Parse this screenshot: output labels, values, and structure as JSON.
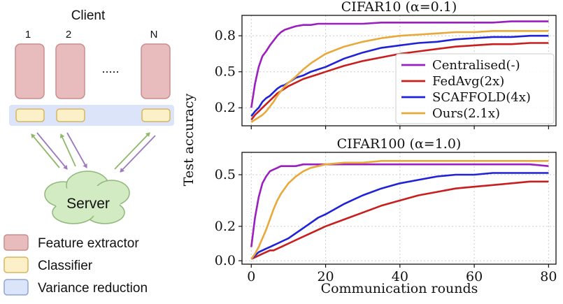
{
  "diagram": {
    "client_title": "Client",
    "client_labels": [
      "1",
      "2",
      "N"
    ],
    "ellipsis": ".....",
    "server_label": "Server",
    "legend": [
      {
        "label": "Feature extractor",
        "fill": "#e8bcbc",
        "stroke": "#c98d8d"
      },
      {
        "label": "Classifier",
        "fill": "#fbf0c8",
        "stroke": "#d9b65e"
      },
      {
        "label": "Variance reduction",
        "fill": "#dbe4f8",
        "stroke": "#8fa6d4"
      }
    ],
    "colors": {
      "extractor_fill": "#e8bcbc",
      "extractor_stroke": "#c98d8d",
      "classifier_fill": "#fbf0c8",
      "classifier_stroke": "#d9b65e",
      "variance_fill": "#dbe4f8",
      "server_fill": "#d3ebc3",
      "server_stroke": "#8fb87a",
      "arrow_up": "#8fb86a",
      "arrow_down": "#9b7bbd"
    }
  },
  "chart_data": [
    {
      "type": "line",
      "title": "CIFAR10 (α=0.1)",
      "xlabel": "",
      "ylabel": "Test accuracy",
      "xlim": [
        -2.5,
        82
      ],
      "ylim": [
        0.05,
        0.97
      ],
      "xticks": [
        0,
        20,
        40,
        60,
        80
      ],
      "xtick_labels": [
        "",
        "",
        "",
        "",
        ""
      ],
      "yticks": [
        0.2,
        0.5,
        0.8
      ],
      "ytick_labels": [
        "0.2",
        "0.5",
        "0.8"
      ],
      "grid": true,
      "legend_position": "lower-right",
      "x": [
        0,
        1,
        2,
        3,
        4,
        5,
        6,
        7,
        8,
        9,
        10,
        12,
        14,
        16,
        18,
        20,
        25,
        30,
        35,
        40,
        45,
        50,
        55,
        60,
        65,
        70,
        75,
        80
      ],
      "series": [
        {
          "name": "Centralised(-)",
          "color": "#9b1fc0",
          "values": [
            0.2,
            0.4,
            0.54,
            0.63,
            0.67,
            0.72,
            0.76,
            0.8,
            0.83,
            0.85,
            0.86,
            0.88,
            0.89,
            0.89,
            0.9,
            0.9,
            0.9,
            0.9,
            0.91,
            0.91,
            0.91,
            0.91,
            0.91,
            0.91,
            0.91,
            0.92,
            0.92,
            0.92
          ]
        },
        {
          "name": "FedAvg(2x)",
          "color": "#c81e1e",
          "values": [
            0.1,
            0.14,
            0.17,
            0.2,
            0.23,
            0.26,
            0.29,
            0.32,
            0.34,
            0.36,
            0.38,
            0.41,
            0.44,
            0.46,
            0.48,
            0.5,
            0.55,
            0.59,
            0.62,
            0.65,
            0.67,
            0.69,
            0.71,
            0.72,
            0.73,
            0.73,
            0.74,
            0.74
          ]
        },
        {
          "name": "SCAFFOLD(4x)",
          "color": "#1f22d6",
          "values": [
            0.13,
            0.17,
            0.2,
            0.25,
            0.28,
            0.3,
            0.33,
            0.36,
            0.38,
            0.39,
            0.41,
            0.45,
            0.47,
            0.5,
            0.52,
            0.54,
            0.61,
            0.66,
            0.7,
            0.72,
            0.74,
            0.75,
            0.77,
            0.78,
            0.79,
            0.79,
            0.8,
            0.8
          ]
        },
        {
          "name": "Ours(2.1x)",
          "color": "#e8a93a",
          "values": [
            0.08,
            0.1,
            0.12,
            0.14,
            0.17,
            0.21,
            0.25,
            0.3,
            0.34,
            0.38,
            0.41,
            0.46,
            0.52,
            0.57,
            0.61,
            0.65,
            0.71,
            0.75,
            0.78,
            0.8,
            0.81,
            0.82,
            0.83,
            0.83,
            0.84,
            0.84,
            0.84,
            0.84
          ]
        }
      ]
    },
    {
      "type": "line",
      "title": "CIFAR100 (α=1.0)",
      "xlabel": "Communication rounds",
      "ylabel": "",
      "xlim": [
        -2.5,
        82
      ],
      "ylim": [
        -0.02,
        0.63
      ],
      "xticks": [
        0,
        20,
        40,
        60,
        80
      ],
      "xtick_labels": [
        "0",
        "20",
        "40",
        "60",
        "80"
      ],
      "yticks": [
        0.0,
        0.2,
        0.5
      ],
      "ytick_labels": [
        "0.0",
        "0.2",
        "0.5"
      ],
      "grid": true,
      "legend_position": "none",
      "x": [
        0,
        1,
        2,
        3,
        4,
        5,
        6,
        7,
        8,
        9,
        10,
        12,
        14,
        16,
        18,
        20,
        25,
        30,
        35,
        40,
        45,
        50,
        55,
        60,
        65,
        70,
        75,
        80
      ],
      "series": [
        {
          "name": "Centralised(-)",
          "color": "#9b1fc0",
          "values": [
            0.08,
            0.25,
            0.37,
            0.45,
            0.49,
            0.52,
            0.53,
            0.54,
            0.55,
            0.55,
            0.55,
            0.55,
            0.56,
            0.56,
            0.56,
            0.56,
            0.56,
            0.56,
            0.56,
            0.56,
            0.56,
            0.56,
            0.56,
            0.56,
            0.56,
            0.56,
            0.56,
            0.55
          ]
        },
        {
          "name": "FedAvg(2x)",
          "color": "#c81e1e",
          "values": [
            0.01,
            0.02,
            0.03,
            0.04,
            0.05,
            0.06,
            0.06,
            0.07,
            0.08,
            0.09,
            0.1,
            0.12,
            0.14,
            0.16,
            0.18,
            0.2,
            0.24,
            0.28,
            0.32,
            0.35,
            0.38,
            0.4,
            0.42,
            0.43,
            0.44,
            0.45,
            0.46,
            0.46
          ]
        },
        {
          "name": "SCAFFOLD(4x)",
          "color": "#1f22d6",
          "values": [
            0.01,
            0.03,
            0.05,
            0.06,
            0.07,
            0.08,
            0.09,
            0.1,
            0.11,
            0.12,
            0.13,
            0.16,
            0.19,
            0.22,
            0.25,
            0.27,
            0.33,
            0.38,
            0.42,
            0.45,
            0.47,
            0.49,
            0.5,
            0.5,
            0.51,
            0.51,
            0.51,
            0.51
          ]
        },
        {
          "name": "Ours(2.1x)",
          "color": "#e8a93a",
          "values": [
            0.01,
            0.04,
            0.08,
            0.13,
            0.18,
            0.24,
            0.3,
            0.35,
            0.39,
            0.42,
            0.45,
            0.49,
            0.52,
            0.54,
            0.55,
            0.56,
            0.57,
            0.57,
            0.58,
            0.58,
            0.58,
            0.58,
            0.58,
            0.58,
            0.58,
            0.58,
            0.58,
            0.58
          ]
        }
      ]
    }
  ]
}
